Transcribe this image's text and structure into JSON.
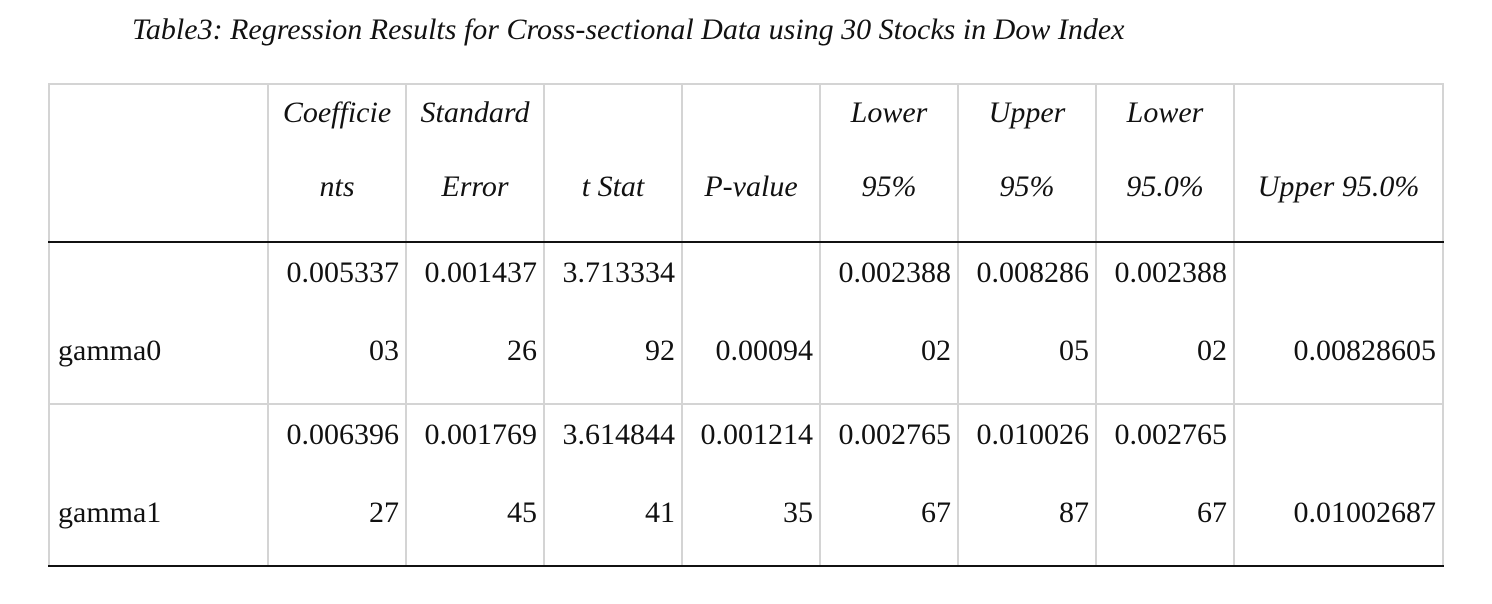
{
  "caption": "Table3: Regression Results for Cross-sectional Data using 30 Stocks in Dow Index",
  "headers": [
    {
      "line1": "",
      "line2": ""
    },
    {
      "line1": "Coefficie",
      "line2": "nts"
    },
    {
      "line1": "Standard",
      "line2": "Error"
    },
    {
      "line1": "",
      "line2": "t Stat"
    },
    {
      "line1": "",
      "line2": "P-value"
    },
    {
      "line1": "Lower",
      "line2": "95%"
    },
    {
      "line1": "Upper",
      "line2": "95%"
    },
    {
      "line1": "Lower",
      "line2": "95.0%"
    },
    {
      "line1": "",
      "line2": "Upper 95.0%"
    }
  ],
  "rows": [
    {
      "label": "gamma0",
      "cells": [
        {
          "line1": "0.005337",
          "line2": "03"
        },
        {
          "line1": "0.001437",
          "line2": "26"
        },
        {
          "line1": "3.713334",
          "line2": "92"
        },
        {
          "line1": "",
          "line2": "0.00094"
        },
        {
          "line1": "0.002388",
          "line2": "02"
        },
        {
          "line1": "0.008286",
          "line2": "05"
        },
        {
          "line1": "0.002388",
          "line2": "02"
        },
        {
          "line1": "",
          "line2": "0.00828605"
        }
      ]
    },
    {
      "label": "gamma1",
      "cells": [
        {
          "line1": "0.006396",
          "line2": "27"
        },
        {
          "line1": "0.001769",
          "line2": "45"
        },
        {
          "line1": "3.614844",
          "line2": "41"
        },
        {
          "line1": "0.001214",
          "line2": "35"
        },
        {
          "line1": "0.002765",
          "line2": "67"
        },
        {
          "line1": "0.010026",
          "line2": "87"
        },
        {
          "line1": "0.002765",
          "line2": "67"
        },
        {
          "line1": "",
          "line2": "0.01002687"
        }
      ]
    }
  ]
}
